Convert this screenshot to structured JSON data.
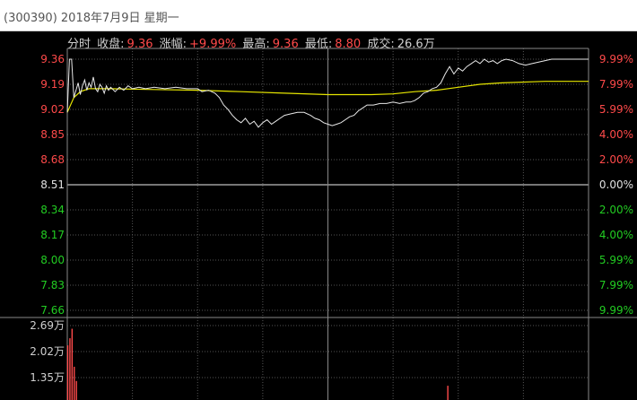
{
  "window": {
    "title": "(300390) 2018年7月9日 星期一"
  },
  "info_bar": {
    "mode_label": "分时",
    "close_label": "收盘:",
    "close_value": "9.36",
    "change_label": "涨幅:",
    "change_value": "+9.99%",
    "high_label": "最高:",
    "high_value": "9.36",
    "low_label": "最低:",
    "low_value": "8.80",
    "volume_label": "成交:",
    "volume_value": "26.6万"
  },
  "colors": {
    "up": "#ff4a4a",
    "down": "#22cc22",
    "neutral": "#e0e0e0",
    "price_line": "#e8e8e8",
    "avg_line": "#e6e600",
    "grid": "#555555",
    "volume_bar": "#ff4a4a"
  },
  "chart_data": {
    "type": "line",
    "prev_close": 8.51,
    "price_ticks": [
      {
        "value": "9.36",
        "color": "up"
      },
      {
        "value": "9.19",
        "color": "up"
      },
      {
        "value": "9.02",
        "color": "up"
      },
      {
        "value": "8.85",
        "color": "up"
      },
      {
        "value": "8.68",
        "color": "up"
      },
      {
        "value": "8.51",
        "color": "neutral"
      },
      {
        "value": "8.34",
        "color": "down"
      },
      {
        "value": "8.17",
        "color": "down"
      },
      {
        "value": "8.00",
        "color": "down"
      },
      {
        "value": "7.83",
        "color": "down"
      },
      {
        "value": "7.66",
        "color": "down"
      }
    ],
    "pct_ticks": [
      {
        "value": "9.99%",
        "color": "up"
      },
      {
        "value": "7.99%",
        "color": "up"
      },
      {
        "value": "5.99%",
        "color": "up"
      },
      {
        "value": "4.00%",
        "color": "up"
      },
      {
        "value": "2.00%",
        "color": "up"
      },
      {
        "value": "0.00%",
        "color": "neutral"
      },
      {
        "value": "2.00%",
        "color": "down"
      },
      {
        "value": "4.00%",
        "color": "down"
      },
      {
        "value": "5.99%",
        "color": "down"
      },
      {
        "value": "7.99%",
        "color": "down"
      },
      {
        "value": "9.99%",
        "color": "down"
      }
    ],
    "ylim": [
      7.66,
      9.36
    ],
    "x_minutes": 240,
    "price_series": [
      [
        0,
        9.0
      ],
      [
        1,
        9.36
      ],
      [
        2,
        9.36
      ],
      [
        3,
        9.1
      ],
      [
        4,
        9.15
      ],
      [
        5,
        9.2
      ],
      [
        6,
        9.12
      ],
      [
        7,
        9.18
      ],
      [
        8,
        9.22
      ],
      [
        9,
        9.15
      ],
      [
        10,
        9.2
      ],
      [
        11,
        9.17
      ],
      [
        12,
        9.24
      ],
      [
        13,
        9.16
      ],
      [
        14,
        9.14
      ],
      [
        15,
        9.19
      ],
      [
        16,
        9.17
      ],
      [
        17,
        9.13
      ],
      [
        18,
        9.18
      ],
      [
        19,
        9.15
      ],
      [
        20,
        9.17
      ],
      [
        22,
        9.14
      ],
      [
        24,
        9.17
      ],
      [
        26,
        9.15
      ],
      [
        28,
        9.18
      ],
      [
        30,
        9.16
      ],
      [
        33,
        9.17
      ],
      [
        36,
        9.16
      ],
      [
        40,
        9.17
      ],
      [
        45,
        9.16
      ],
      [
        50,
        9.17
      ],
      [
        55,
        9.16
      ],
      [
        60,
        9.16
      ],
      [
        62,
        9.14
      ],
      [
        65,
        9.15
      ],
      [
        68,
        9.13
      ],
      [
        70,
        9.1
      ],
      [
        72,
        9.05
      ],
      [
        74,
        9.02
      ],
      [
        76,
        8.98
      ],
      [
        78,
        8.95
      ],
      [
        80,
        8.93
      ],
      [
        82,
        8.96
      ],
      [
        84,
        8.92
      ],
      [
        86,
        8.94
      ],
      [
        88,
        8.9
      ],
      [
        90,
        8.93
      ],
      [
        92,
        8.95
      ],
      [
        94,
        8.92
      ],
      [
        96,
        8.94
      ],
      [
        98,
        8.96
      ],
      [
        100,
        8.98
      ],
      [
        103,
        8.99
      ],
      [
        106,
        9.0
      ],
      [
        109,
        9.0
      ],
      [
        112,
        8.98
      ],
      [
        114,
        8.96
      ],
      [
        116,
        8.95
      ],
      [
        118,
        8.93
      ],
      [
        120,
        8.92
      ],
      [
        122,
        8.91
      ],
      [
        124,
        8.92
      ],
      [
        126,
        8.93
      ],
      [
        128,
        8.95
      ],
      [
        130,
        8.97
      ],
      [
        132,
        8.98
      ],
      [
        134,
        9.01
      ],
      [
        136,
        9.03
      ],
      [
        138,
        9.05
      ],
      [
        141,
        9.05
      ],
      [
        144,
        9.06
      ],
      [
        147,
        9.06
      ],
      [
        150,
        9.07
      ],
      [
        153,
        9.06
      ],
      [
        156,
        9.07
      ],
      [
        158,
        9.07
      ],
      [
        160,
        9.08
      ],
      [
        162,
        9.1
      ],
      [
        164,
        9.13
      ],
      [
        166,
        9.14
      ],
      [
        168,
        9.16
      ],
      [
        170,
        9.17
      ],
      [
        172,
        9.2
      ],
      [
        174,
        9.26
      ],
      [
        176,
        9.31
      ],
      [
        178,
        9.26
      ],
      [
        180,
        9.3
      ],
      [
        182,
        9.28
      ],
      [
        184,
        9.31
      ],
      [
        186,
        9.33
      ],
      [
        188,
        9.35
      ],
      [
        190,
        9.33
      ],
      [
        192,
        9.36
      ],
      [
        194,
        9.34
      ],
      [
        196,
        9.35
      ],
      [
        198,
        9.33
      ],
      [
        200,
        9.35
      ],
      [
        202,
        9.36
      ],
      [
        205,
        9.35
      ],
      [
        208,
        9.33
      ],
      [
        211,
        9.32
      ],
      [
        214,
        9.33
      ],
      [
        217,
        9.34
      ],
      [
        220,
        9.35
      ],
      [
        223,
        9.36
      ],
      [
        226,
        9.36
      ],
      [
        230,
        9.36
      ],
      [
        235,
        9.36
      ],
      [
        240,
        9.36
      ]
    ],
    "avg_series": [
      [
        0,
        9.0
      ],
      [
        3,
        9.1
      ],
      [
        6,
        9.14
      ],
      [
        10,
        9.16
      ],
      [
        20,
        9.16
      ],
      [
        40,
        9.155
      ],
      [
        60,
        9.15
      ],
      [
        80,
        9.14
      ],
      [
        100,
        9.13
      ],
      [
        120,
        9.12
      ],
      [
        140,
        9.12
      ],
      [
        150,
        9.125
      ],
      [
        160,
        9.14
      ],
      [
        170,
        9.15
      ],
      [
        180,
        9.17
      ],
      [
        190,
        9.19
      ],
      [
        200,
        9.2
      ],
      [
        220,
        9.21
      ],
      [
        240,
        9.21
      ]
    ],
    "volume_ticks": [
      "2.69万",
      "2.02万",
      "1.35万"
    ],
    "volume_ylim": [
      0,
      3.36
    ],
    "volume_unit": "万",
    "volume_bars": [
      [
        0,
        2.3
      ],
      [
        1,
        2.6
      ],
      [
        2,
        3.0
      ],
      [
        3,
        1.4
      ],
      [
        4,
        0.8
      ],
      [
        175,
        0.6
      ]
    ]
  }
}
